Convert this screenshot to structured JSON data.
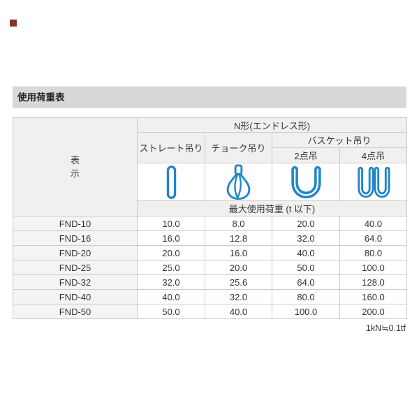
{
  "marker": {
    "color": "#8a3324"
  },
  "section": {
    "title": "使用荷重表"
  },
  "table": {
    "left_header": "表\n示",
    "group_header": "N形(エンドレス形)",
    "col_straight": "ストレート吊り",
    "col_choke": "チョーク吊り",
    "col_basket": "バスケット吊り",
    "col_basket_2pt": "2点吊",
    "col_basket_4pt": "4点吊",
    "max_load_header": "最大使用荷重 (t 以下)",
    "icon_names": [
      "straight-sling-icon",
      "choke-sling-icon",
      "basket-2point-sling-icon",
      "basket-4point-sling-icon"
    ],
    "rows": [
      {
        "model": "FND-10",
        "values": [
          "10.0",
          "8.0",
          "20.0",
          "40.0"
        ]
      },
      {
        "model": "FND-16",
        "values": [
          "16.0",
          "12.8",
          "32.0",
          "64.0"
        ]
      },
      {
        "model": "FND-20",
        "values": [
          "20.0",
          "16.0",
          "40.0",
          "80.0"
        ]
      },
      {
        "model": "FND-25",
        "values": [
          "25.0",
          "20.0",
          "50.0",
          "100.0"
        ]
      },
      {
        "model": "FND-32",
        "values": [
          "32.0",
          "25.6",
          "64.0",
          "128.0"
        ]
      },
      {
        "model": "FND-40",
        "values": [
          "40.0",
          "32.0",
          "80.0",
          "160.0"
        ]
      },
      {
        "model": "FND-50",
        "values": [
          "50.0",
          "40.0",
          "100.0",
          "200.0"
        ]
      }
    ]
  },
  "footnote": "1kN≒0.1tf",
  "colors": {
    "sling_blue": "#2186c7",
    "title_bar_bg": "#d8d8d8",
    "header_cell_bg": "#f1f0ee",
    "model_cell_bg": "#f4f4f3",
    "border": "#cccccc"
  }
}
